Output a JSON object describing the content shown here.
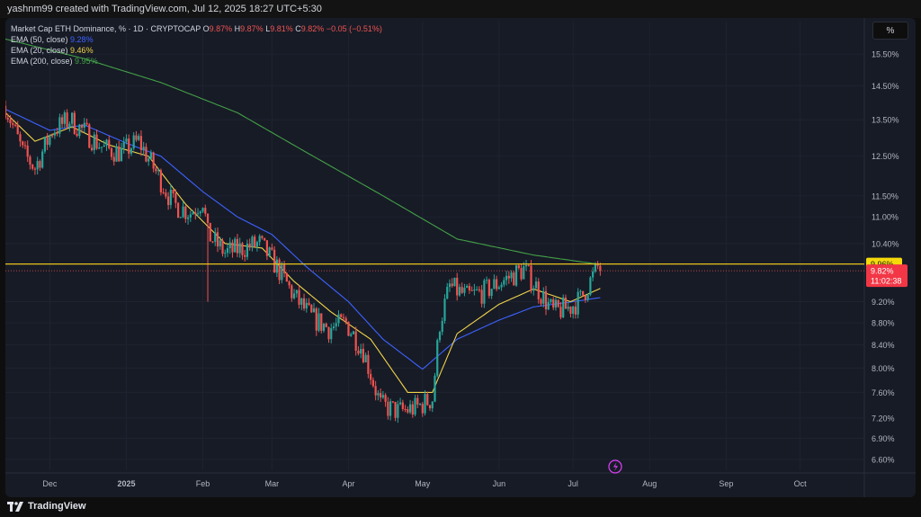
{
  "header": {
    "credit": "yashnm99 created with TradingView.com, Jul 12, 2025 18:27 UTC+5:30"
  },
  "footer": {
    "brand": "TradingView"
  },
  "legend": {
    "symbol": "Market Cap ETH Dominance, % · 1D · CRYPTOCAP",
    "ohlc": {
      "o_label": "O",
      "o": "9.87%",
      "h_label": "H",
      "h": "9.87%",
      "l_label": "L",
      "l": "9.81%",
      "c_label": "C",
      "c": "9.82%",
      "change": "−0.05 (−0.51%)"
    },
    "indicators": [
      {
        "name": "EMA (50, close)",
        "value": "9.28%",
        "color": "#3d62ff"
      },
      {
        "name": "EMA (20, close)",
        "value": "9.46%",
        "color": "#f0d44a"
      },
      {
        "name": "EMA (200, close)",
        "value": "9.95%",
        "color": "#43a047"
      }
    ]
  },
  "unit_button": "%",
  "colors": {
    "up": "#26a69a",
    "down": "#ef5350",
    "level_line": "#e8c21a",
    "price_line": "#ef5350"
  },
  "price_labels": {
    "level": "9.96%",
    "current": "9.82%",
    "countdown": "11:02:38"
  },
  "chart_data": {
    "type": "candlestick",
    "y_scale": "log",
    "ylim": [
      6.45,
      16.6
    ],
    "y_ticks": [
      15.5,
      14.5,
      13.5,
      12.5,
      11.5,
      11.0,
      10.4,
      9.2,
      8.8,
      8.4,
      8.0,
      7.6,
      7.2,
      6.9,
      6.6
    ],
    "y_tick_labels": [
      "15.50%",
      "14.50%",
      "13.50%",
      "12.50%",
      "11.50%",
      "11.00%",
      "10.40%",
      "9.20%",
      "8.80%",
      "8.40%",
      "8.00%",
      "7.60%",
      "7.20%",
      "6.90%",
      "6.60%"
    ],
    "x_range": [
      "2024-11-13",
      "2025-10-27"
    ],
    "x_ticks": [
      {
        "date": "2024-12-01",
        "label": "Dec"
      },
      {
        "date": "2025-01-01",
        "label": "2025"
      },
      {
        "date": "2025-02-01",
        "label": "Feb"
      },
      {
        "date": "2025-03-01",
        "label": "Mar"
      },
      {
        "date": "2025-04-01",
        "label": "Apr"
      },
      {
        "date": "2025-05-01",
        "label": "May"
      },
      {
        "date": "2025-06-01",
        "label": "Jun"
      },
      {
        "date": "2025-07-01",
        "label": "Jul"
      },
      {
        "date": "2025-08-01",
        "label": "Aug"
      },
      {
        "date": "2025-09-01",
        "label": "Sep"
      },
      {
        "date": "2025-10-01",
        "label": "Oct"
      }
    ],
    "horizontal_level": 9.96,
    "last_close": 9.82,
    "close_path": [
      [
        "2024-11-13",
        13.9
      ],
      [
        "2024-11-20",
        12.6
      ],
      [
        "2024-11-25",
        12.2
      ],
      [
        "2024-12-02",
        13.2
      ],
      [
        "2024-12-09",
        13.5
      ],
      [
        "2024-12-16",
        13.1
      ],
      [
        "2024-12-23",
        12.7
      ],
      [
        "2024-12-30",
        12.6
      ],
      [
        "2025-01-06",
        12.9
      ],
      [
        "2025-01-13",
        12.1
      ],
      [
        "2025-01-20",
        11.3
      ],
      [
        "2025-01-27",
        11.1
      ],
      [
        "2025-02-01",
        11.4
      ],
      [
        "2025-02-03",
        10.6
      ],
      [
        "2025-02-10",
        10.2
      ],
      [
        "2025-02-17",
        10.3
      ],
      [
        "2025-02-24",
        10.4
      ],
      [
        "2025-03-03",
        9.9
      ],
      [
        "2025-03-10",
        9.3
      ],
      [
        "2025-03-17",
        8.9
      ],
      [
        "2025-03-24",
        8.7
      ],
      [
        "2025-03-31",
        8.8
      ],
      [
        "2025-04-07",
        8.3
      ],
      [
        "2025-04-14",
        7.4
      ],
      [
        "2025-04-21",
        7.3
      ],
      [
        "2025-04-28",
        7.35
      ],
      [
        "2025-05-05",
        7.5
      ],
      [
        "2025-05-08",
        8.8
      ],
      [
        "2025-05-12",
        9.5
      ],
      [
        "2025-05-19",
        9.3
      ],
      [
        "2025-05-26",
        9.4
      ],
      [
        "2025-06-02",
        9.6
      ],
      [
        "2025-06-11",
        9.85
      ],
      [
        "2025-06-16",
        9.5
      ],
      [
        "2025-06-23",
        9.0
      ],
      [
        "2025-06-30",
        9.1
      ],
      [
        "2025-07-04",
        9.25
      ],
      [
        "2025-07-09",
        9.7
      ],
      [
        "2025-07-11",
        9.9
      ],
      [
        "2025-07-12",
        9.82
      ]
    ],
    "ema": [
      {
        "name": "EMA (200, close)",
        "color": "#43a047",
        "points": [
          [
            "2024-11-13",
            16.0
          ],
          [
            "2024-12-15",
            15.35
          ],
          [
            "2025-01-15",
            14.6
          ],
          [
            "2025-02-15",
            13.7
          ],
          [
            "2025-03-15",
            12.6
          ],
          [
            "2025-04-15",
            11.5
          ],
          [
            "2025-05-15",
            10.5
          ],
          [
            "2025-06-15",
            10.15
          ],
          [
            "2025-07-12",
            9.95
          ]
        ]
      },
      {
        "name": "EMA (50, close)",
        "color": "#3d62ff",
        "points": [
          [
            "2024-11-13",
            13.8
          ],
          [
            "2024-12-01",
            13.2
          ],
          [
            "2024-12-15",
            13.35
          ],
          [
            "2025-01-01",
            12.85
          ],
          [
            "2025-01-15",
            12.5
          ],
          [
            "2025-02-01",
            11.6
          ],
          [
            "2025-02-15",
            11.0
          ],
          [
            "2025-03-01",
            10.6
          ],
          [
            "2025-03-15",
            9.9
          ],
          [
            "2025-04-01",
            9.2
          ],
          [
            "2025-04-15",
            8.5
          ],
          [
            "2025-05-01",
            7.98
          ],
          [
            "2025-05-15",
            8.5
          ],
          [
            "2025-06-01",
            8.85
          ],
          [
            "2025-06-15",
            9.1
          ],
          [
            "2025-07-01",
            9.2
          ],
          [
            "2025-07-12",
            9.28
          ]
        ]
      },
      {
        "name": "EMA (20, close)",
        "color": "#f0d44a",
        "points": [
          [
            "2024-11-13",
            13.7
          ],
          [
            "2024-11-25",
            12.9
          ],
          [
            "2024-12-10",
            13.3
          ],
          [
            "2024-12-25",
            12.8
          ],
          [
            "2025-01-10",
            12.5
          ],
          [
            "2025-01-25",
            11.3
          ],
          [
            "2025-02-10",
            10.4
          ],
          [
            "2025-02-25",
            10.3
          ],
          [
            "2025-03-10",
            9.6
          ],
          [
            "2025-03-25",
            9.0
          ],
          [
            "2025-04-10",
            8.5
          ],
          [
            "2025-04-25",
            7.6
          ],
          [
            "2025-05-05",
            7.6
          ],
          [
            "2025-05-15",
            8.6
          ],
          [
            "2025-06-01",
            9.15
          ],
          [
            "2025-06-15",
            9.45
          ],
          [
            "2025-06-30",
            9.2
          ],
          [
            "2025-07-12",
            9.46
          ]
        ]
      }
    ]
  }
}
